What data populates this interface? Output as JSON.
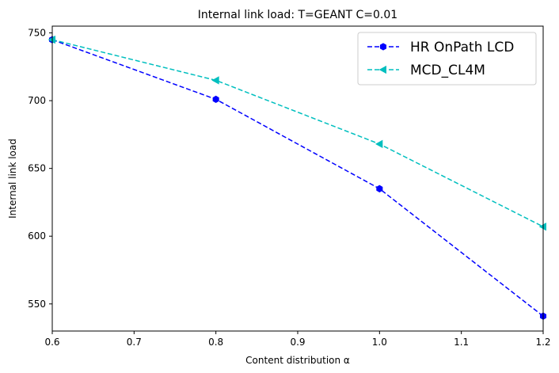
{
  "chart_data": {
    "type": "line",
    "title": "Internal link load: T=GEANT C=0.01",
    "xlabel": "Content distribution α",
    "ylabel": "Internal link load",
    "xlim": [
      0.6,
      1.2
    ],
    "ylim": [
      530,
      755
    ],
    "xticks": [
      "0.6",
      "0.7",
      "0.8",
      "0.9",
      "1.0",
      "1.1",
      "1.2"
    ],
    "yticks": [
      "550",
      "600",
      "650",
      "700",
      "750"
    ],
    "legend_position": "top-right",
    "series": [
      {
        "name": "HR OnPath LCD",
        "color": "#0000ff",
        "marker": "hexagon",
        "line_style": "dashed",
        "x": [
          0.6,
          0.8,
          1.0,
          1.2
        ],
        "y": [
          745,
          701,
          635,
          541
        ]
      },
      {
        "name": "MCD_CL4M",
        "color": "#00bfbf",
        "marker": "triangle-left",
        "line_style": "dashed",
        "x": [
          0.6,
          0.8,
          1.0,
          1.2
        ],
        "y": [
          745,
          715,
          668,
          607
        ]
      }
    ]
  }
}
